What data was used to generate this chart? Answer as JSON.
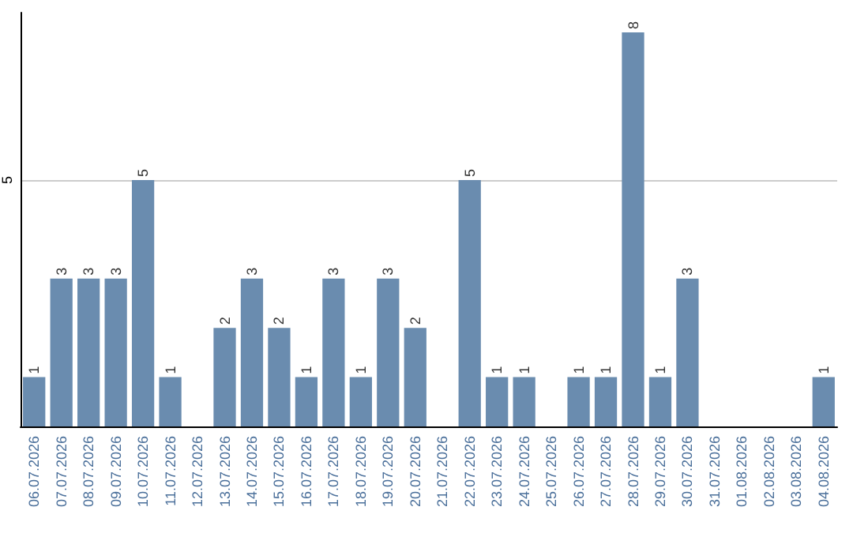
{
  "chart_data": {
    "type": "bar",
    "categories": [
      "06.07.2026",
      "07.07.2026",
      "08.07.2026",
      "09.07.2026",
      "10.07.2026",
      "11.07.2026",
      "12.07.2026",
      "13.07.2026",
      "14.07.2026",
      "15.07.2026",
      "16.07.2026",
      "17.07.2026",
      "18.07.2026",
      "19.07.2026",
      "20.07.2026",
      "21.07.2026",
      "22.07.2026",
      "23.07.2026",
      "24.07.2026",
      "25.07.2026",
      "26.07.2026",
      "27.07.2026",
      "28.07.2026",
      "29.07.2026",
      "30.07.2026",
      "31.07.2026",
      "01.08.2026",
      "02.08.2026",
      "03.08.2026",
      "04.08.2026"
    ],
    "values": [
      1,
      3,
      3,
      3,
      5,
      1,
      0,
      2,
      3,
      2,
      1,
      3,
      1,
      3,
      2,
      0,
      5,
      1,
      1,
      0,
      1,
      1,
      8,
      1,
      3,
      0,
      0,
      0,
      0,
      1
    ],
    "value_labels": [
      "1",
      "3",
      "3",
      "3",
      "5",
      "1",
      null,
      "2",
      "3",
      "2",
      "1",
      "3",
      "1",
      "3",
      "2",
      null,
      "5",
      "1",
      "1",
      null,
      "1",
      "1",
      "8",
      "1",
      "3",
      null,
      null,
      null,
      null,
      "1"
    ],
    "color": "#6a8caf",
    "ylim": [
      0,
      8.4
    ],
    "yticks": [
      5
    ],
    "grid": "y"
  }
}
